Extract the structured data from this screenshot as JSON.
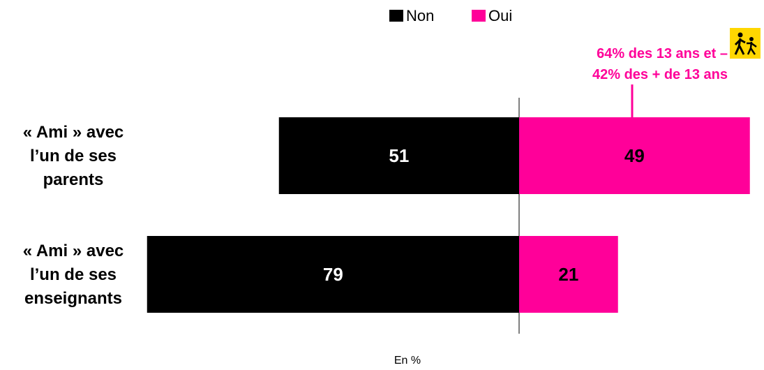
{
  "chart_data": {
    "type": "bar",
    "categories": [
      "« Ami » avec\nl’un de ses\nparents",
      "« Ami » avec\nl’un de ses\nenseignants"
    ],
    "series": [
      {
        "name": "Non",
        "color": "#000000",
        "values": [
          51,
          79
        ]
      },
      {
        "name": "Oui",
        "color": "#ff0099",
        "values": [
          49,
          21
        ]
      }
    ],
    "annotation": "64% des 13 ans et –\n42% des + de 13 ans",
    "footnote": "En %"
  }
}
